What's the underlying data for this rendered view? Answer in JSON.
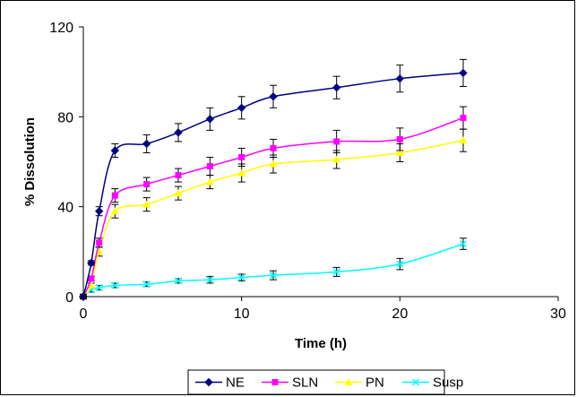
{
  "chart_data": {
    "type": "line",
    "title": "",
    "xlabel": "Time (h)",
    "ylabel": "% Dissolution",
    "xlim": [
      0,
      30
    ],
    "ylim": [
      0,
      120
    ],
    "xticks": [
      0,
      10,
      20,
      30
    ],
    "yticks": [
      0,
      40,
      80,
      120
    ],
    "xtick_labels": [
      "0",
      "10",
      "20",
      "30"
    ],
    "ytick_labels": [
      "0",
      "40",
      "80",
      "120"
    ],
    "grid": false,
    "legend_position": "bottom",
    "series": [
      {
        "name": "NE",
        "color": "#000080",
        "marker": "diamond",
        "x": [
          0,
          0.5,
          1,
          2,
          4,
          6,
          8,
          10,
          12,
          16,
          20,
          24
        ],
        "y": [
          0,
          15,
          38,
          65,
          68,
          73,
          79,
          84,
          89,
          93,
          97,
          99.5
        ],
        "err": [
          1,
          1,
          2,
          3,
          4,
          4,
          5,
          5,
          5,
          5,
          6,
          6
        ]
      },
      {
        "name": "SLN",
        "color": "#ff00ff",
        "marker": "square",
        "x": [
          0,
          0.5,
          1,
          2,
          4,
          6,
          8,
          10,
          12,
          16,
          20,
          24
        ],
        "y": [
          0,
          8,
          24,
          45,
          50,
          54,
          58,
          62,
          66,
          69,
          70,
          79.5
        ],
        "err": [
          1,
          1,
          2,
          3,
          3,
          3,
          4,
          4,
          4,
          5,
          5,
          5
        ]
      },
      {
        "name": "PN",
        "color": "#ffff00",
        "marker": "triangle",
        "x": [
          0,
          0.5,
          1,
          2,
          4,
          6,
          8,
          10,
          12,
          16,
          20,
          24
        ],
        "y": [
          0,
          5,
          20,
          38,
          41,
          46,
          51,
          55,
          59,
          61,
          64,
          69.5
        ],
        "err": [
          1,
          1,
          2,
          3,
          3,
          3,
          3,
          4,
          4,
          4,
          4,
          5
        ]
      },
      {
        "name": "Susp",
        "color": "#00ffff",
        "marker": "x",
        "x": [
          0,
          0.5,
          1,
          2,
          4,
          6,
          8,
          10,
          12,
          16,
          20,
          24
        ],
        "y": [
          0,
          3,
          4,
          5,
          5.5,
          7,
          7.5,
          8.5,
          9.5,
          11,
          14.5,
          23.5
        ],
        "err": [
          0.5,
          1,
          1,
          1,
          1,
          1,
          1.5,
          1.5,
          2,
          2,
          2.5,
          2.5
        ]
      }
    ]
  }
}
